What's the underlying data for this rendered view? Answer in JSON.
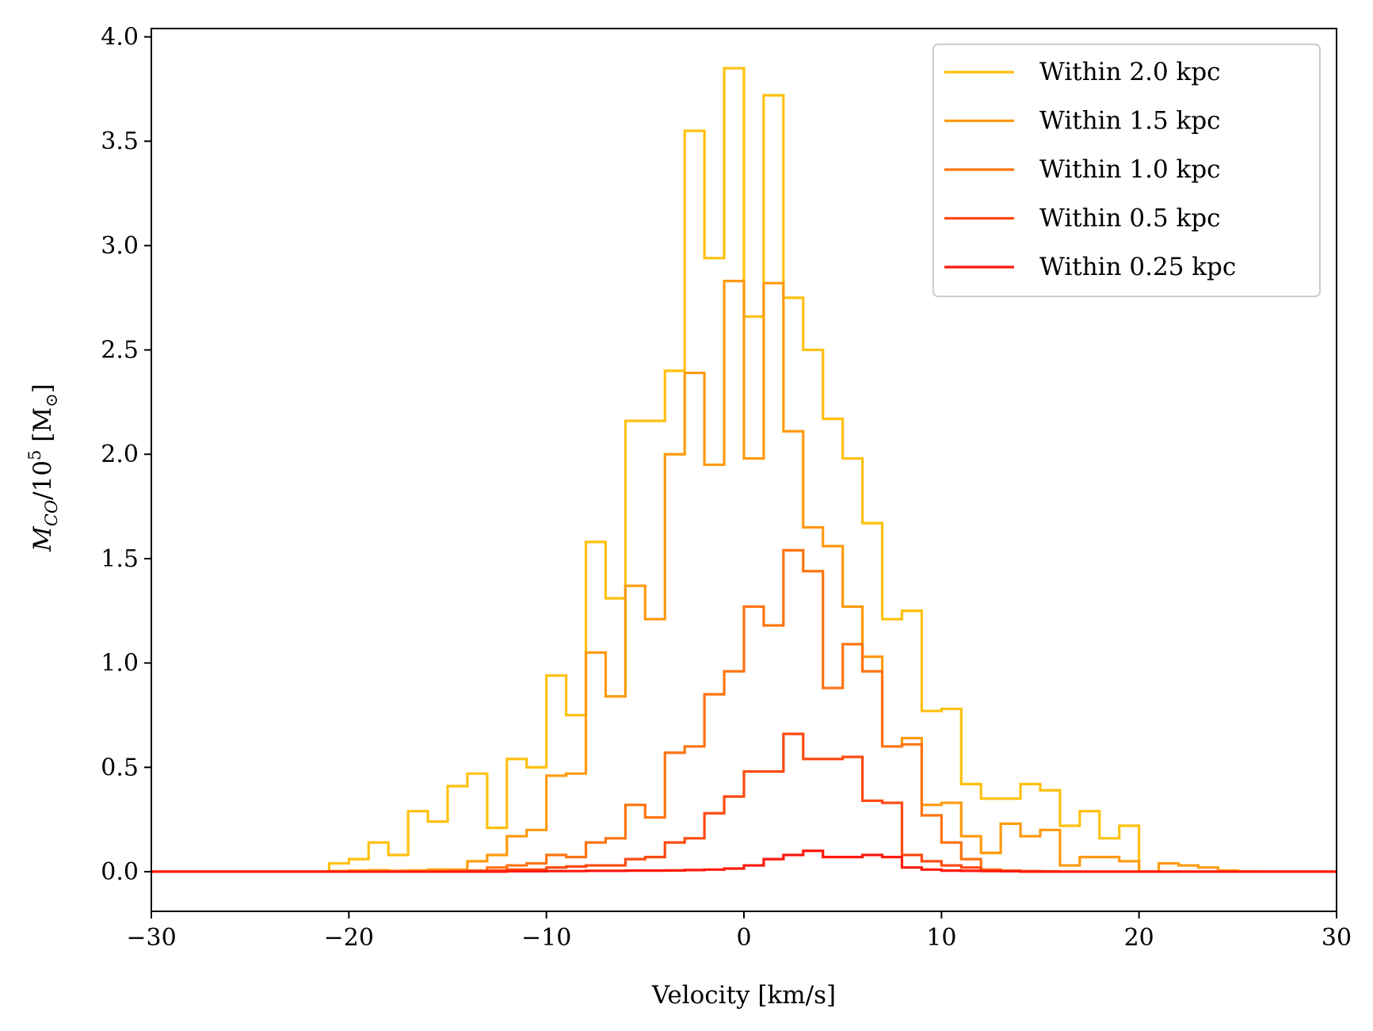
{
  "chart_data": {
    "type": "line",
    "drawstyle": "steps",
    "title": "",
    "xlabel": "Velocity [km/s]",
    "ylabel": {
      "main": "M",
      "sub": "CO",
      "mid": "/10",
      "sup": "5",
      "unit": " [M",
      "unit_sub": "⊙",
      "close": "]"
    },
    "xlim": [
      -30,
      30
    ],
    "ylim": [
      -0.19,
      4.04
    ],
    "xticks": [
      -30,
      -20,
      -10,
      0,
      10,
      20,
      30
    ],
    "xtick_labels": [
      "−30",
      "−20",
      "−10",
      "0",
      "10",
      "20",
      "30"
    ],
    "yticks": [
      0.0,
      0.5,
      1.0,
      1.5,
      2.0,
      2.5,
      3.0,
      3.5,
      4.0
    ],
    "ytick_labels": [
      "0.0",
      "0.5",
      "1.0",
      "1.5",
      "2.0",
      "2.5",
      "3.0",
      "3.5",
      "4.0"
    ],
    "grid": false,
    "legend_position": "top-right",
    "bin_edges": [
      -30,
      -29,
      -28,
      -27,
      -26,
      -25,
      -24,
      -23,
      -22,
      -21,
      -20,
      -19,
      -18,
      -17,
      -16,
      -15,
      -14,
      -13,
      -12,
      -11,
      -10,
      -9,
      -8,
      -7,
      -6,
      -5,
      -4,
      -3,
      -2,
      -1,
      0,
      1,
      2,
      3,
      4,
      5,
      6,
      7,
      8,
      9,
      10,
      11,
      12,
      13,
      14,
      15,
      16,
      17,
      18,
      19,
      20,
      21,
      22,
      23,
      24,
      25,
      26,
      27,
      28,
      29,
      30
    ],
    "series": [
      {
        "name": "Within 2.0 kpc",
        "color": "#ffc00f",
        "values": [
          0,
          0,
          0,
          0,
          0,
          0,
          0,
          0,
          0,
          0.04,
          0.06,
          0.14,
          0.08,
          0.29,
          0.24,
          0.41,
          0.47,
          0.21,
          0.54,
          0.5,
          0.94,
          0.75,
          1.58,
          1.31,
          2.16,
          2.16,
          2.4,
          3.55,
          2.94,
          3.85,
          2.66,
          3.72,
          2.75,
          2.5,
          2.17,
          1.98,
          1.67,
          1.21,
          1.25,
          0.77,
          0.78,
          0.42,
          0.35,
          0.35,
          0.42,
          0.39,
          0.22,
          0.29,
          0.16,
          0.22,
          0,
          0,
          0,
          0,
          0,
          0,
          0,
          0,
          0,
          0
        ]
      },
      {
        "name": "Within 1.5 kpc",
        "color": "#ff9a0e",
        "values": [
          0,
          0,
          0,
          0,
          0,
          0,
          0,
          0,
          0,
          0.003,
          0.005,
          0.007,
          0.004,
          0.006,
          0.01,
          0.01,
          0.05,
          0.08,
          0.17,
          0.2,
          0.46,
          0.47,
          1.05,
          0.84,
          1.37,
          1.21,
          2.0,
          2.39,
          1.95,
          2.83,
          1.98,
          2.82,
          2.11,
          1.65,
          1.56,
          1.27,
          1.03,
          0.6,
          0.64,
          0.32,
          0.33,
          0.17,
          0.09,
          0.23,
          0.17,
          0.2,
          0.03,
          0.07,
          0.07,
          0.05,
          0,
          0.04,
          0.03,
          0.02,
          0.005,
          0.002,
          0,
          0,
          0,
          0
        ]
      },
      {
        "name": "Within 1.0 kpc",
        "color": "#ff7410",
        "values": [
          0,
          0,
          0,
          0,
          0,
          0,
          0,
          0,
          0,
          0,
          0,
          0,
          0,
          0,
          0,
          0.004,
          0.005,
          0.02,
          0.03,
          0.04,
          0.08,
          0.07,
          0.14,
          0.16,
          0.32,
          0.26,
          0.57,
          0.6,
          0.85,
          0.96,
          1.27,
          1.18,
          1.54,
          1.44,
          0.88,
          1.09,
          0.96,
          0.6,
          0.61,
          0.27,
          0.14,
          0.06,
          0.01,
          0.005,
          0.003,
          0.002,
          0,
          0,
          0,
          0,
          0,
          0,
          0,
          0,
          0,
          0,
          0,
          0,
          0,
          0
        ]
      },
      {
        "name": "Within 0.5 kpc",
        "color": "#ff4a10",
        "values": [
          0,
          0,
          0,
          0,
          0,
          0,
          0,
          0,
          0,
          0,
          0,
          0,
          0,
          0,
          0,
          0,
          0.003,
          0.005,
          0.01,
          0.01,
          0.02,
          0.025,
          0.03,
          0.03,
          0.06,
          0.07,
          0.14,
          0.16,
          0.28,
          0.36,
          0.48,
          0.48,
          0.66,
          0.54,
          0.54,
          0.55,
          0.34,
          0.33,
          0.08,
          0.05,
          0.03,
          0.02,
          0.005,
          0.002,
          0,
          0,
          0,
          0,
          0,
          0,
          0,
          0,
          0,
          0,
          0,
          0,
          0,
          0,
          0,
          0
        ]
      },
      {
        "name": "Within 0.25 kpc",
        "color": "#ff1a0d",
        "values": [
          0,
          0,
          0,
          0,
          0,
          0,
          0,
          0,
          0,
          0,
          0,
          0,
          0,
          0,
          0,
          0,
          0,
          0,
          0.002,
          0.002,
          0.003,
          0.003,
          0.004,
          0.004,
          0.005,
          0.005,
          0.006,
          0.008,
          0.01,
          0.015,
          0.03,
          0.06,
          0.08,
          0.1,
          0.07,
          0.07,
          0.08,
          0.07,
          0.02,
          0.01,
          0.005,
          0.004,
          0.003,
          0.002,
          0.001,
          0,
          0,
          0,
          0,
          0,
          0,
          0,
          0,
          0,
          0,
          0,
          0,
          0,
          0,
          0
        ]
      }
    ]
  }
}
